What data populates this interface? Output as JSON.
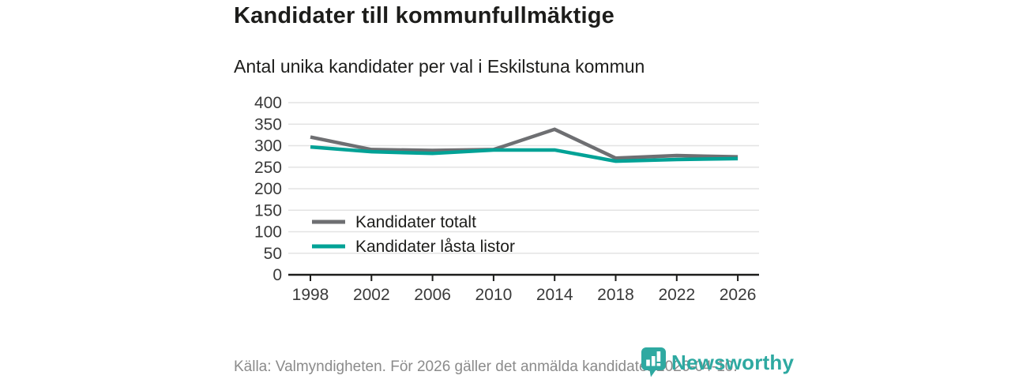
{
  "header": {
    "title": "Kandidater till kommunfullmäktige",
    "subtitle": "Antal unika kandidater per val i Eskilstuna kommun"
  },
  "chart_data": {
    "type": "line",
    "title": "Kandidater till kommunfullmäktige",
    "subtitle": "Antal unika kandidater per val i Eskilstuna kommun",
    "categories": [
      "1998",
      "2002",
      "2006",
      "2010",
      "2014",
      "2018",
      "2022",
      "2026"
    ],
    "series": [
      {
        "name": "Kandidater totalt",
        "color": "#6e6f72",
        "values": [
          320,
          291,
          289,
          291,
          338,
          271,
          277,
          274
        ]
      },
      {
        "name": "Kandidater låsta listor",
        "color": "#00a296",
        "values": [
          297,
          286,
          282,
          290,
          290,
          264,
          268,
          270
        ]
      }
    ],
    "xlabel": "",
    "ylabel": "",
    "ylim": [
      0,
      400
    ],
    "yticks": [
      0,
      50,
      100,
      150,
      200,
      250,
      300,
      350,
      400
    ],
    "grid": "horizontal",
    "legend_position": "inside-left"
  },
  "footer": {
    "source": "Källa: Valmyndigheten. För 2026 gäller det anmälda kandidater 2026-04-10.",
    "logo_text": "Newsworthy"
  },
  "colors": {
    "series_gray": "#6e6f72",
    "accent_teal": "#00a296",
    "logo_teal": "#2ea9a1",
    "grid": "#e3e3e3",
    "axis": "#1d1d1b",
    "axis_label": "#3a3a3a",
    "legend_text": "#1d1d1b",
    "footer_text": "#8b8b8b"
  }
}
